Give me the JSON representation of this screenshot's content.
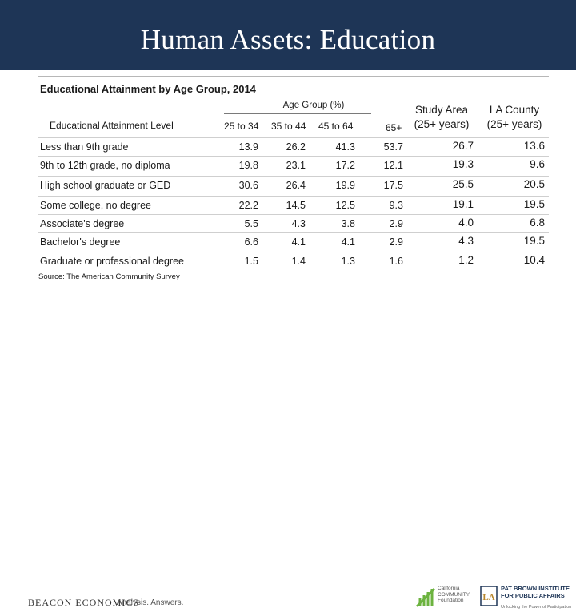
{
  "title": "Human Assets: Education",
  "table_title": "Educational Attainment by Age Group, 2014",
  "group_label": "Age Group (%)",
  "columns": {
    "level": "Educational Attainment Level",
    "age_25_34": "25 to 34",
    "age_35_44": "35 to 44",
    "age_45_64": "45 to 64",
    "age_65": "65+",
    "study_area": "Study Area (25+ years)",
    "la_county": "LA County (25+ years)"
  },
  "rows": [
    {
      "label": "Less than 9th grade",
      "a": "13.9",
      "b": "26.2",
      "c": "41.3",
      "d": "53.7",
      "sa": "26.7",
      "la": "13.6"
    },
    {
      "label": "9th to 12th grade, no diploma",
      "a": "19.8",
      "b": "23.1",
      "c": "17.2",
      "d": "12.1",
      "sa": "19.3",
      "la": "9.6"
    },
    {
      "label": "High school graduate or GED",
      "a": "30.6",
      "b": "26.4",
      "c": "19.9",
      "d": "17.5",
      "sa": "25.5",
      "la": "20.5"
    },
    {
      "label": "Some college, no degree",
      "a": "22.2",
      "b": "14.5",
      "c": "12.5",
      "d": "9.3",
      "sa": "19.1",
      "la": "19.5"
    },
    {
      "label": "Associate's degree",
      "a": "5.5",
      "b": "4.3",
      "c": "3.8",
      "d": "2.9",
      "sa": "4.0",
      "la": "6.8"
    },
    {
      "label": "Bachelor's degree",
      "a": "6.6",
      "b": "4.1",
      "c": "4.1",
      "d": "2.9",
      "sa": "4.3",
      "la": "19.5"
    },
    {
      "label": "Graduate or professional degree",
      "a": "1.5",
      "b": "1.4",
      "c": "1.3",
      "d": "1.6",
      "sa": "1.2",
      "la": "10.4"
    }
  ],
  "source": "Source: The American Community Survey",
  "footer": {
    "beacon_logo": "BEACON ECONOMICS",
    "tagline": "Analysis. Answers.",
    "cc_logo_text": "California COMMUNITY Foundation",
    "pb_logo_text": "PAT BROWN INSTITUTE FOR PUBLIC AFFAIRS",
    "pb_logo_sub": "Unlocking the Power of Participation",
    "colors": {
      "navy": "#1e3556",
      "green": "#6cb33f"
    }
  }
}
